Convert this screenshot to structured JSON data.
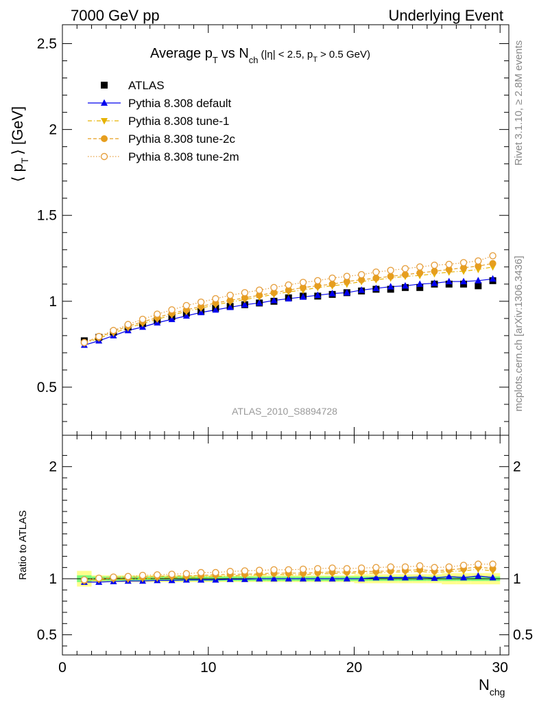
{
  "header": {
    "left": "7000 GeV pp",
    "right": "Underlying Event"
  },
  "plot_title": {
    "main": "Average p",
    "main_sub": "T",
    "vs": "vs N",
    "vs_sub": "ch",
    "cuts": "(|η| < 2.5, p",
    "cuts_sub": "T",
    "cuts_end": "> 0.5 GeV)"
  },
  "ylabel": {
    "open": "⟨ p",
    "sub": "T",
    "close": "⟩ [GeV]"
  },
  "ratio_ylabel": "Ratio to ATLAS",
  "xlabel": {
    "main": "N",
    "sub": "chg"
  },
  "watermark": "ATLAS_2010_S8894728",
  "side_text": {
    "upper": "Rivet 3.1.10, ≥ 2.8M events",
    "lower": "mcplots.cern.ch [arXiv:1306.3436]"
  },
  "colors": {
    "atlas": "#000000",
    "default": "#0000ee",
    "tune1": "#e6b200",
    "tune2c": "#e69e1e",
    "tune2m": "#e6a040",
    "band_inner": "#7cfc7c",
    "band_outer": "#fffe8c"
  },
  "chart_data": {
    "type": "scatter",
    "x": [
      1.5,
      2.5,
      3.5,
      4.5,
      5.5,
      6.5,
      7.5,
      8.5,
      9.5,
      10.5,
      11.5,
      12.5,
      13.5,
      14.5,
      15.5,
      16.5,
      17.5,
      18.5,
      19.5,
      20.5,
      21.5,
      22.5,
      23.5,
      24.5,
      25.5,
      26.5,
      27.5,
      28.5,
      29.5
    ],
    "xlim": [
      0,
      30.6
    ],
    "ylim": [
      0.22,
      2.61
    ],
    "ratio_ylim": [
      0.32,
      2.28
    ],
    "x_ticks": [
      0,
      10,
      20,
      30
    ],
    "y_ticks": [
      0.5,
      1,
      1.5,
      2,
      2.5
    ],
    "y_tick_labels": [
      "0.5",
      "1",
      "1.5",
      "2",
      "2.5"
    ],
    "ratio_ticks": [
      0.5,
      1,
      2
    ],
    "ratio_tick_labels": [
      "0.5",
      "1",
      "2"
    ],
    "x_tick_labels": [
      "0",
      "10",
      "20",
      "30"
    ],
    "series": [
      {
        "name": "ATLAS",
        "marker": "square",
        "line": "none",
        "values": [
          0.77,
          0.79,
          0.82,
          0.85,
          0.87,
          0.89,
          0.91,
          0.93,
          0.94,
          0.96,
          0.97,
          0.98,
          0.99,
          1.0,
          1.02,
          1.03,
          1.03,
          1.04,
          1.05,
          1.06,
          1.07,
          1.07,
          1.08,
          1.08,
          1.1,
          1.1,
          1.1,
          1.09,
          1.12
        ],
        "ratio": [
          1,
          1,
          1,
          1,
          1,
          1,
          1,
          1,
          1,
          1,
          1,
          1,
          1,
          1,
          1,
          1,
          1,
          1,
          1,
          1,
          1,
          1,
          1,
          1,
          1,
          1,
          1,
          1,
          1
        ],
        "band_inner": [
          0.03,
          0.02,
          0.02,
          0.02,
          0.02,
          0.02,
          0.02,
          0.02,
          0.02,
          0.02,
          0.02,
          0.02,
          0.02,
          0.02,
          0.02,
          0.02,
          0.02,
          0.02,
          0.02,
          0.02,
          0.02,
          0.02,
          0.02,
          0.02,
          0.02,
          0.02,
          0.02,
          0.02,
          0.02
        ],
        "band_outer": [
          0.07,
          0.03,
          0.03,
          0.03,
          0.03,
          0.03,
          0.03,
          0.03,
          0.03,
          0.03,
          0.03,
          0.03,
          0.03,
          0.03,
          0.03,
          0.03,
          0.03,
          0.03,
          0.03,
          0.04,
          0.04,
          0.04,
          0.04,
          0.04,
          0.04,
          0.05,
          0.05,
          0.05,
          0.05
        ]
      },
      {
        "name": "Pythia 8.308 default",
        "marker": "triangle-up",
        "line": "solid",
        "values": [
          0.745,
          0.77,
          0.8,
          0.83,
          0.85,
          0.875,
          0.895,
          0.915,
          0.935,
          0.95,
          0.965,
          0.98,
          0.99,
          1.005,
          1.015,
          1.025,
          1.035,
          1.045,
          1.05,
          1.065,
          1.075,
          1.085,
          1.09,
          1.1,
          1.105,
          1.115,
          1.115,
          1.12,
          1.13
        ],
        "ratio": [
          0.97,
          0.97,
          0.975,
          0.98,
          0.98,
          0.985,
          0.985,
          0.99,
          0.99,
          0.99,
          0.995,
          0.995,
          1.0,
          1.0,
          1.0,
          1.0,
          1.0,
          1.0,
          1.0,
          1.0,
          1.01,
          1.01,
          1.01,
          1.015,
          1.005,
          1.02,
          1.01,
          1.025,
          1.01
        ]
      },
      {
        "name": "Pythia 8.308 tune-1",
        "marker": "triangle-down",
        "line": "dashdot",
        "values": [
          0.755,
          0.785,
          0.815,
          0.845,
          0.87,
          0.895,
          0.92,
          0.94,
          0.96,
          0.98,
          0.995,
          1.01,
          1.025,
          1.04,
          1.055,
          1.065,
          1.08,
          1.09,
          1.1,
          1.115,
          1.125,
          1.135,
          1.145,
          1.15,
          1.16,
          1.17,
          1.175,
          1.185,
          1.2
        ],
        "ratio": [
          0.98,
          0.99,
          0.995,
          0.995,
          1.0,
          1.005,
          1.01,
          1.01,
          1.015,
          1.02,
          1.025,
          1.03,
          1.035,
          1.04,
          1.035,
          1.035,
          1.045,
          1.045,
          1.05,
          1.05,
          1.05,
          1.06,
          1.06,
          1.065,
          1.055,
          1.065,
          1.07,
          1.085,
          1.07
        ]
      },
      {
        "name": "Pythia 8.308 tune-2c",
        "marker": "circle",
        "line": "dashed",
        "values": [
          0.76,
          0.79,
          0.825,
          0.855,
          0.88,
          0.905,
          0.93,
          0.95,
          0.97,
          0.99,
          1.005,
          1.02,
          1.035,
          1.05,
          1.065,
          1.08,
          1.09,
          1.1,
          1.115,
          1.125,
          1.135,
          1.145,
          1.155,
          1.165,
          1.175,
          1.185,
          1.195,
          1.205,
          1.22
        ],
        "ratio": [
          0.985,
          1.0,
          1.005,
          1.01,
          1.015,
          1.02,
          1.025,
          1.025,
          1.03,
          1.035,
          1.04,
          1.04,
          1.045,
          1.05,
          1.05,
          1.05,
          1.055,
          1.06,
          1.06,
          1.065,
          1.065,
          1.07,
          1.075,
          1.08,
          1.07,
          1.08,
          1.09,
          1.105,
          1.09
        ]
      },
      {
        "name": "Pythia 8.308 tune-2m",
        "marker": "circle-open",
        "line": "dotted",
        "values": [
          0.76,
          0.795,
          0.83,
          0.865,
          0.895,
          0.925,
          0.95,
          0.975,
          0.995,
          1.015,
          1.035,
          1.05,
          1.065,
          1.08,
          1.095,
          1.11,
          1.12,
          1.135,
          1.145,
          1.155,
          1.17,
          1.18,
          1.19,
          1.2,
          1.21,
          1.215,
          1.225,
          1.235,
          1.265
        ],
        "ratio": [
          0.99,
          1.005,
          1.015,
          1.02,
          1.03,
          1.035,
          1.04,
          1.045,
          1.055,
          1.055,
          1.065,
          1.07,
          1.075,
          1.08,
          1.08,
          1.085,
          1.09,
          1.095,
          1.09,
          1.095,
          1.1,
          1.105,
          1.105,
          1.115,
          1.1,
          1.105,
          1.12,
          1.13,
          1.13
        ]
      }
    ]
  }
}
